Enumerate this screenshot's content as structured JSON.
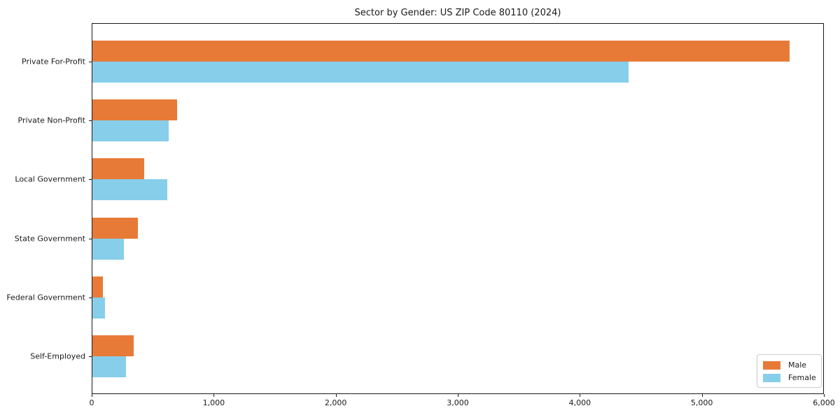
{
  "chart_data": {
    "type": "bar",
    "orientation": "horizontal",
    "title": "Sector by Gender: US ZIP Code 80110 (2024)",
    "categories": [
      "Private For-Profit",
      "Private Non-Profit",
      "Local Government",
      "State Government",
      "Federal Government",
      "Self-Employed"
    ],
    "series": [
      {
        "name": "Male",
        "color": "#E87A38",
        "values": [
          5720,
          700,
          430,
          380,
          90,
          345
        ]
      },
      {
        "name": "Female",
        "color": "#87CEEB",
        "values": [
          4400,
          630,
          620,
          265,
          110,
          280
        ]
      }
    ],
    "xlabel": "",
    "ylabel": "",
    "xlim": [
      0,
      6000
    ],
    "xticks": [
      0,
      1000,
      2000,
      3000,
      4000,
      5000,
      6000
    ],
    "xtick_labels": [
      "0",
      "1,000",
      "2,000",
      "3,000",
      "4,000",
      "5,000",
      "6,000"
    ],
    "grid": false,
    "legend": {
      "position": "lower right",
      "entries": [
        {
          "label": "Male",
          "color": "#E87A38"
        },
        {
          "label": "Female",
          "color": "#87CEEB"
        }
      ]
    },
    "axis_color": "#1a1a1a"
  }
}
